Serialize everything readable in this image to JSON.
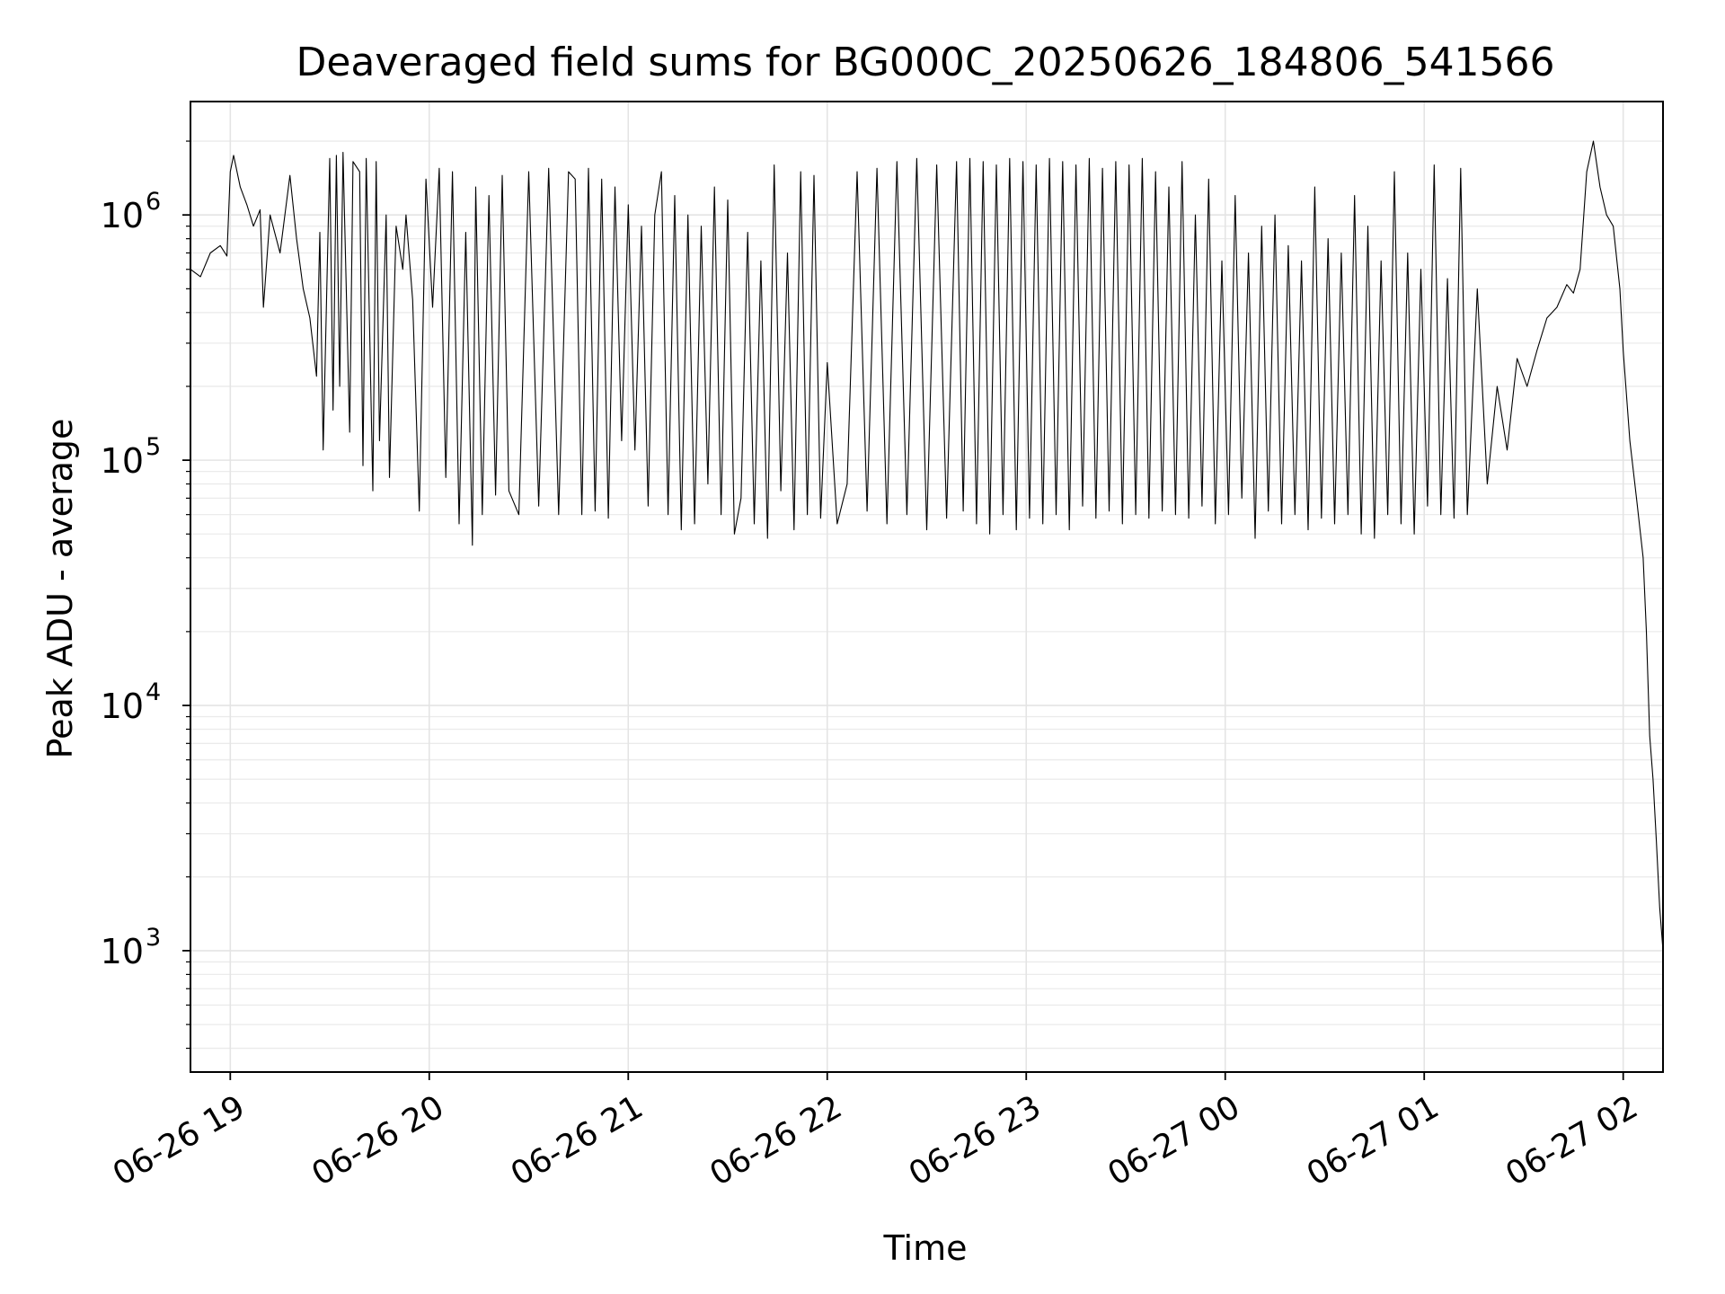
{
  "chart_data": {
    "type": "line",
    "title": "Deaveraged field sums for BG000C_20250626_184806_541566",
    "xlabel": "Time",
    "ylabel": "Peak ADU - average",
    "yscale": "log",
    "ylim": [
      320,
      2900000
    ],
    "xlim": [
      "2025-06-26 18:48",
      "2025-06-27 02:12"
    ],
    "grid": true,
    "grid_minor": true,
    "legend": "none",
    "line_color": "#000000",
    "x_ticks": [
      {
        "t": "2025-06-26 19:00",
        "label": "06-26 19"
      },
      {
        "t": "2025-06-26 20:00",
        "label": "06-26 20"
      },
      {
        "t": "2025-06-26 21:00",
        "label": "06-26 21"
      },
      {
        "t": "2025-06-26 22:00",
        "label": "06-26 22"
      },
      {
        "t": "2025-06-26 23:00",
        "label": "06-26 23"
      },
      {
        "t": "2025-06-27 00:00",
        "label": "06-27 00"
      },
      {
        "t": "2025-06-27 01:00",
        "label": "06-27 01"
      },
      {
        "t": "2025-06-27 02:00",
        "label": "06-27 02"
      }
    ],
    "y_ticks": [
      {
        "value": 1000,
        "base": "10",
        "exp": "3"
      },
      {
        "value": 10000,
        "base": "10",
        "exp": "4"
      },
      {
        "value": 100000,
        "base": "10",
        "exp": "5"
      },
      {
        "value": 1000000,
        "base": "10",
        "exp": "6"
      }
    ],
    "series": [
      {
        "x": [
          "2025-06-26 18:48",
          "2025-06-26 18:51",
          "2025-06-26 18:54",
          "2025-06-26 18:57",
          "2025-06-26 18:59",
          "2025-06-26 19:00",
          "2025-06-26 19:01",
          "2025-06-26 19:03",
          "2025-06-26 19:05",
          "2025-06-26 19:07",
          "2025-06-26 19:09",
          "2025-06-26 19:10",
          "2025-06-26 19:12",
          "2025-06-26 19:15",
          "2025-06-26 19:18",
          "2025-06-26 19:20",
          "2025-06-26 19:22",
          "2025-06-26 19:24",
          "2025-06-26 19:26",
          "2025-06-26 19:27",
          "2025-06-26 19:28",
          "2025-06-26 19:30",
          "2025-06-26 19:31",
          "2025-06-26 19:32",
          "2025-06-26 19:33",
          "2025-06-26 19:34",
          "2025-06-26 19:36",
          "2025-06-26 19:37",
          "2025-06-26 19:39",
          "2025-06-26 19:40",
          "2025-06-26 19:41",
          "2025-06-26 19:43",
          "2025-06-26 19:44",
          "2025-06-26 19:45",
          "2025-06-26 19:47",
          "2025-06-26 19:48",
          "2025-06-26 19:50",
          "2025-06-26 19:52",
          "2025-06-26 19:53",
          "2025-06-26 19:55",
          "2025-06-26 19:57",
          "2025-06-26 19:59",
          "2025-06-26 20:01",
          "2025-06-26 20:03",
          "2025-06-26 20:05",
          "2025-06-26 20:07",
          "2025-06-26 20:09",
          "2025-06-26 20:11",
          "2025-06-26 20:13",
          "2025-06-26 20:14",
          "2025-06-26 20:16",
          "2025-06-26 20:18",
          "2025-06-26 20:20",
          "2025-06-26 20:22",
          "2025-06-26 20:24",
          "2025-06-26 20:27",
          "2025-06-26 20:30",
          "2025-06-26 20:33",
          "2025-06-26 20:36",
          "2025-06-26 20:39",
          "2025-06-26 20:42",
          "2025-06-26 20:44",
          "2025-06-26 20:46",
          "2025-06-26 20:48",
          "2025-06-26 20:50",
          "2025-06-26 20:52",
          "2025-06-26 20:54",
          "2025-06-26 20:56",
          "2025-06-26 20:58",
          "2025-06-26 21:00",
          "2025-06-26 21:02",
          "2025-06-26 21:04",
          "2025-06-26 21:06",
          "2025-06-26 21:08",
          "2025-06-26 21:10",
          "2025-06-26 21:12",
          "2025-06-26 21:14",
          "2025-06-26 21:16",
          "2025-06-26 21:18",
          "2025-06-26 21:20",
          "2025-06-26 21:22",
          "2025-06-26 21:24",
          "2025-06-26 21:26",
          "2025-06-26 21:28",
          "2025-06-26 21:30",
          "2025-06-26 21:32",
          "2025-06-26 21:34",
          "2025-06-26 21:36",
          "2025-06-26 21:38",
          "2025-06-26 21:40",
          "2025-06-26 21:42",
          "2025-06-26 21:44",
          "2025-06-26 21:46",
          "2025-06-26 21:48",
          "2025-06-26 21:50",
          "2025-06-26 21:52",
          "2025-06-26 21:54",
          "2025-06-26 21:56",
          "2025-06-26 21:58",
          "2025-06-26 22:00",
          "2025-06-26 22:03",
          "2025-06-26 22:06",
          "2025-06-26 22:09",
          "2025-06-26 22:12",
          "2025-06-26 22:15",
          "2025-06-26 22:18",
          "2025-06-26 22:21",
          "2025-06-26 22:24",
          "2025-06-26 22:27",
          "2025-06-26 22:30",
          "2025-06-26 22:33",
          "2025-06-26 22:36",
          "2025-06-26 22:39",
          "2025-06-26 22:41",
          "2025-06-26 22:43",
          "2025-06-26 22:45",
          "2025-06-26 22:47",
          "2025-06-26 22:49",
          "2025-06-26 22:51",
          "2025-06-26 22:53",
          "2025-06-26 22:55",
          "2025-06-26 22:57",
          "2025-06-26 22:59",
          "2025-06-26 23:01",
          "2025-06-26 23:03",
          "2025-06-26 23:05",
          "2025-06-26 23:07",
          "2025-06-26 23:09",
          "2025-06-26 23:11",
          "2025-06-26 23:13",
          "2025-06-26 23:15",
          "2025-06-26 23:17",
          "2025-06-26 23:19",
          "2025-06-26 23:21",
          "2025-06-26 23:23",
          "2025-06-26 23:25",
          "2025-06-26 23:27",
          "2025-06-26 23:29",
          "2025-06-26 23:31",
          "2025-06-26 23:33",
          "2025-06-26 23:35",
          "2025-06-26 23:37",
          "2025-06-26 23:39",
          "2025-06-26 23:41",
          "2025-06-26 23:43",
          "2025-06-26 23:45",
          "2025-06-26 23:47",
          "2025-06-26 23:49",
          "2025-06-26 23:51",
          "2025-06-26 23:53",
          "2025-06-26 23:55",
          "2025-06-26 23:57",
          "2025-06-26 23:59",
          "2025-06-27 00:01",
          "2025-06-27 00:03",
          "2025-06-27 00:05",
          "2025-06-27 00:07",
          "2025-06-27 00:09",
          "2025-06-27 00:11",
          "2025-06-27 00:13",
          "2025-06-27 00:15",
          "2025-06-27 00:17",
          "2025-06-27 00:19",
          "2025-06-27 00:21",
          "2025-06-27 00:23",
          "2025-06-27 00:25",
          "2025-06-27 00:27",
          "2025-06-27 00:29",
          "2025-06-27 00:31",
          "2025-06-27 00:33",
          "2025-06-27 00:35",
          "2025-06-27 00:37",
          "2025-06-27 00:39",
          "2025-06-27 00:41",
          "2025-06-27 00:43",
          "2025-06-27 00:45",
          "2025-06-27 00:47",
          "2025-06-27 00:49",
          "2025-06-27 00:51",
          "2025-06-27 00:53",
          "2025-06-27 00:55",
          "2025-06-27 00:57",
          "2025-06-27 00:59",
          "2025-06-27 01:01",
          "2025-06-27 01:03",
          "2025-06-27 01:05",
          "2025-06-27 01:07",
          "2025-06-27 01:09",
          "2025-06-27 01:11",
          "2025-06-27 01:13",
          "2025-06-27 01:16",
          "2025-06-27 01:19",
          "2025-06-27 01:22",
          "2025-06-27 01:25",
          "2025-06-27 01:28",
          "2025-06-27 01:31",
          "2025-06-27 01:34",
          "2025-06-27 01:37",
          "2025-06-27 01:40",
          "2025-06-27 01:43",
          "2025-06-27 01:45",
          "2025-06-27 01:47",
          "2025-06-27 01:49",
          "2025-06-27 01:51",
          "2025-06-27 01:53",
          "2025-06-27 01:55",
          "2025-06-27 01:57",
          "2025-06-27 01:59",
          "2025-06-27 02:00",
          "2025-06-27 02:02",
          "2025-06-27 02:04",
          "2025-06-27 02:06",
          "2025-06-27 02:07",
          "2025-06-27 02:08",
          "2025-06-27 02:09",
          "2025-06-27 02:10",
          "2025-06-27 02:11",
          "2025-06-27 02:12"
        ],
        "values": [
          600000,
          560000,
          700000,
          750000,
          680000,
          1500000,
          1750000,
          1300000,
          1100000,
          900000,
          1050000,
          420000,
          1000000,
          700000,
          1450000,
          800000,
          500000,
          380000,
          220000,
          850000,
          110000,
          1700000,
          160000,
          1750000,
          200000,
          1800000,
          130000,
          1650000,
          1500000,
          95000,
          1700000,
          75000,
          1650000,
          120000,
          1000000,
          85000,
          900000,
          600000,
          1000000,
          450000,
          62000,
          1400000,
          420000,
          1550000,
          85000,
          1500000,
          55000,
          850000,
          45000,
          1300000,
          60000,
          1200000,
          72000,
          1450000,
          75000,
          60000,
          1500000,
          65000,
          1550000,
          60000,
          1500000,
          1400000,
          60000,
          1550000,
          62000,
          1400000,
          58000,
          1300000,
          120000,
          1100000,
          110000,
          900000,
          65000,
          1000000,
          1500000,
          60000,
          1200000,
          52000,
          1000000,
          55000,
          900000,
          80000,
          1300000,
          60000,
          1150000,
          50000,
          70000,
          850000,
          55000,
          650000,
          48000,
          1600000,
          75000,
          700000,
          52000,
          1500000,
          60000,
          1450000,
          58000,
          250000,
          55000,
          80000,
          1500000,
          62000,
          1550000,
          55000,
          1650000,
          60000,
          1700000,
          52000,
          1600000,
          58000,
          1650000,
          62000,
          1700000,
          55000,
          1650000,
          50000,
          1600000,
          60000,
          1700000,
          52000,
          1650000,
          58000,
          1600000,
          55000,
          1700000,
          60000,
          1650000,
          52000,
          1600000,
          65000,
          1700000,
          58000,
          1550000,
          62000,
          1650000,
          55000,
          1600000,
          60000,
          1700000,
          58000,
          1500000,
          62000,
          1300000,
          60000,
          1650000,
          58000,
          1000000,
          65000,
          1400000,
          55000,
          650000,
          60000,
          1200000,
          70000,
          700000,
          48000,
          900000,
          62000,
          1000000,
          55000,
          750000,
          60000,
          650000,
          52000,
          1300000,
          58000,
          800000,
          55000,
          700000,
          60000,
          1200000,
          50000,
          900000,
          48000,
          650000,
          60000,
          1500000,
          55000,
          700000,
          50000,
          600000,
          65000,
          1600000,
          60000,
          550000,
          58000,
          1550000,
          60000,
          500000,
          80000,
          200000,
          110000,
          260000,
          200000,
          280000,
          380000,
          420000,
          520000,
          480000,
          600000,
          1500000,
          2000000,
          1300000,
          1000000,
          900000,
          500000,
          280000,
          120000,
          70000,
          40000,
          20000,
          7500,
          5000,
          2800,
          1500,
          1000
        ]
      }
    ]
  }
}
